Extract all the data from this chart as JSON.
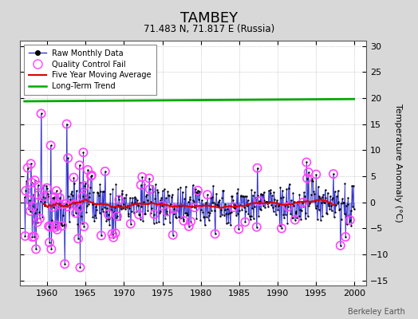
{
  "title": "TAMBEY",
  "subtitle": "71.483 N, 71.817 E (Russia)",
  "ylabel": "Temperature Anomaly (°C)",
  "credit": "Berkeley Earth",
  "xlim": [
    1956.5,
    2001.5
  ],
  "ylim": [
    -16,
    31
  ],
  "yticks": [
    -15,
    -10,
    -5,
    0,
    5,
    10,
    15,
    20,
    25,
    30
  ],
  "xticks": [
    1960,
    1965,
    1970,
    1975,
    1980,
    1985,
    1990,
    1995,
    2000
  ],
  "fig_bg_color": "#d8d8d8",
  "plot_bg_color": "#ffffff",
  "line_color": "#3333cc",
  "stem_color": "#6666dd",
  "ma_color": "#dd0000",
  "trend_color": "#00aa00",
  "qc_color": "#ff44ff",
  "dot_color": "#000000",
  "seed": 17
}
